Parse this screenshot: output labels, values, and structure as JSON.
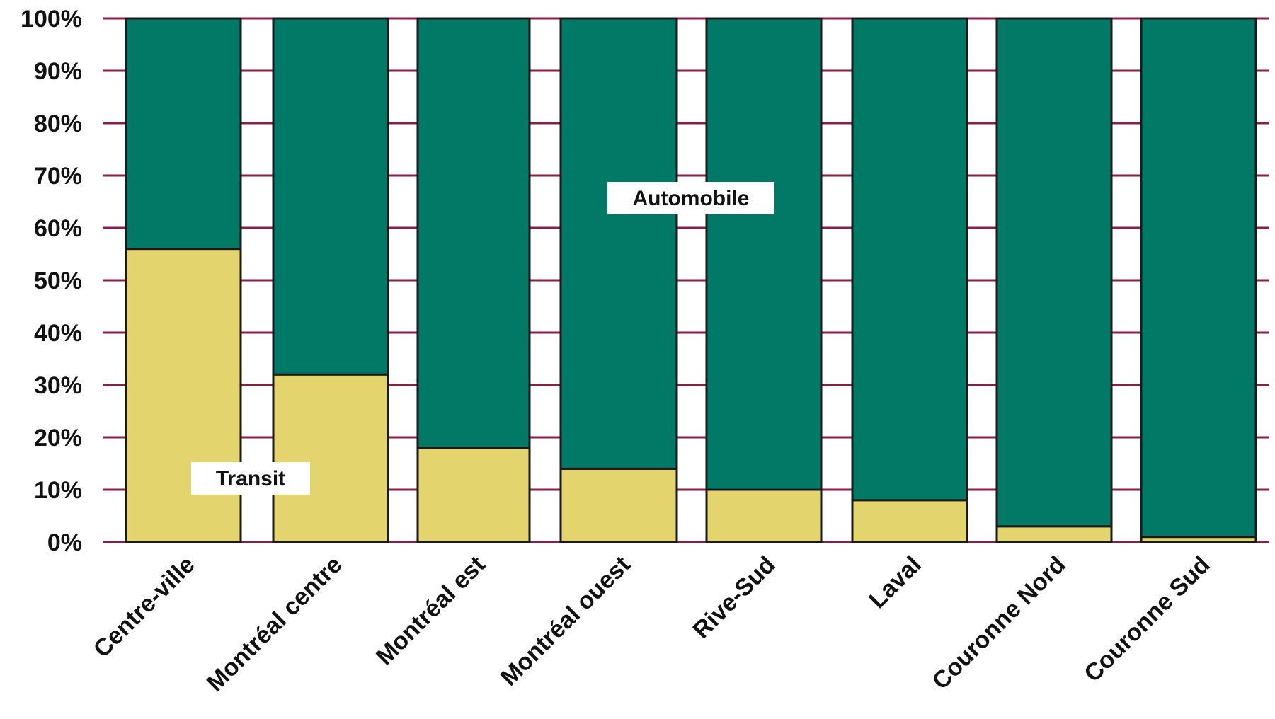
{
  "chart_data": {
    "type": "bar",
    "stacked": true,
    "categories": [
      "Centre-ville",
      "Montréal centre",
      "Montréal est",
      "Montréal ouest",
      "Rive-Sud",
      "Laval",
      "Couronne Nord",
      "Couronne Sud"
    ],
    "series": [
      {
        "name": "Transit",
        "values": [
          56,
          32,
          18,
          14,
          10,
          8,
          3,
          1
        ],
        "color": "#e3d46e"
      },
      {
        "name": "Automobile",
        "values": [
          44,
          68,
          82,
          86,
          90,
          92,
          97,
          99
        ],
        "color": "#007a67"
      }
    ],
    "yticks": [
      "0%",
      "10%",
      "20%",
      "30%",
      "40%",
      "50%",
      "60%",
      "70%",
      "80%",
      "90%",
      "100%"
    ],
    "ylim": [
      0,
      100
    ],
    "grid": true,
    "grid_color": "#8a1f45",
    "annotations": [
      {
        "text": "Automobile"
      },
      {
        "text": "Transit"
      }
    ],
    "title": "",
    "xlabel": "",
    "ylabel": ""
  }
}
